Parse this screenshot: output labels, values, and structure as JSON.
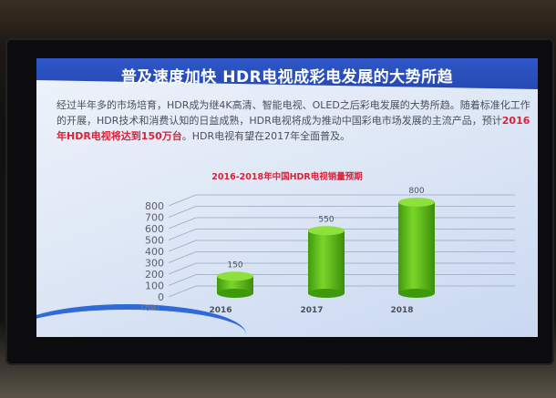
{
  "slide": {
    "title": "普及速度加快 HDR电视成彩电发展的大势所趋",
    "body_part1": "经过半年多的市场培育，HDR成为继4K高清、智能电视、OLED之后彩电发展的大势所趋。随着标准化工作的开展，HDR技术和消费认知的日益成熟，HDR电视将成为推动中国彩电市场发展的主流产品，预计",
    "body_highlight": "2016年HDR电视将达到150万台",
    "body_part2": "。HDR电视有望在2017年全面普及。"
  },
  "colors": {
    "banner": "#2446b0",
    "highlight": "#d8233a",
    "bar": "#6cc21a"
  },
  "chart_data": {
    "type": "bar",
    "style": "3d-cylinder",
    "title": "2016-2018年中国HDR电视销量预期",
    "categories": [
      "2016",
      "2017",
      "2018"
    ],
    "values": [
      150,
      550,
      800
    ],
    "data_labels": [
      "150",
      "550",
      "800"
    ],
    "ylabel": "(万台)",
    "ylim": [
      0,
      800
    ],
    "yticks": [
      "0",
      "100",
      "200",
      "300",
      "400",
      "500",
      "600",
      "700",
      "800"
    ],
    "grid": true,
    "legend": "none"
  }
}
